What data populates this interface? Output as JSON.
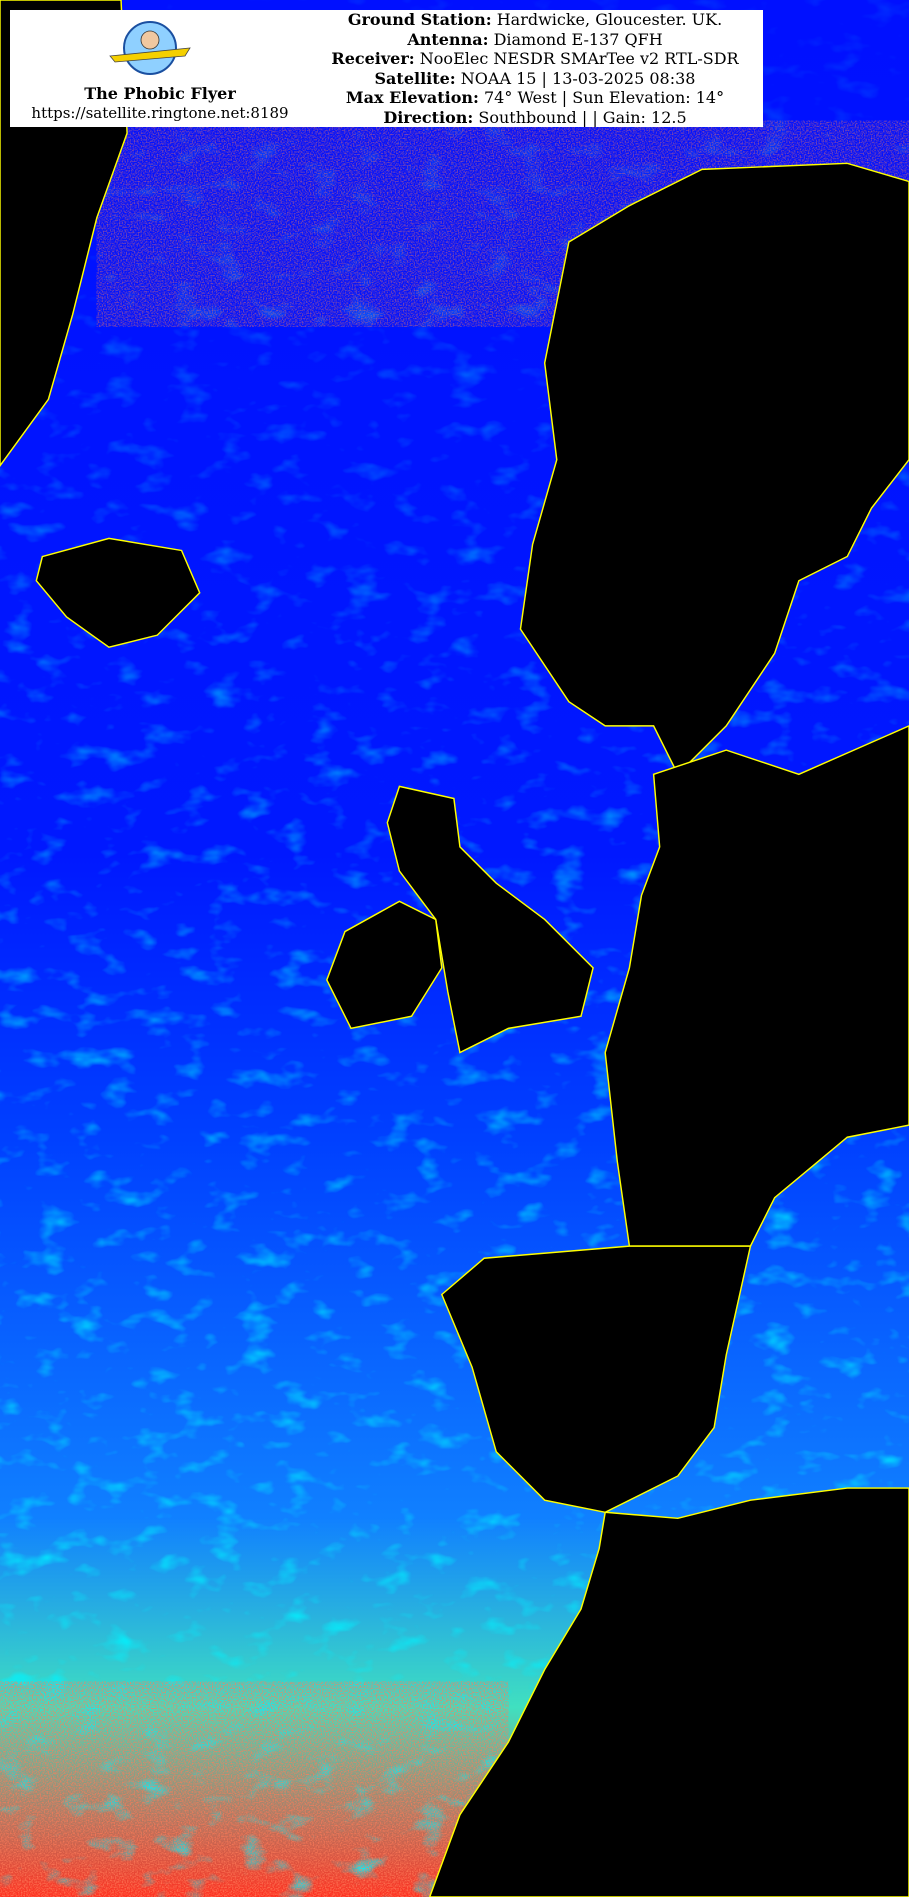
{
  "header": {
    "brand_name": "The Phobic Flyer",
    "brand_url": "https://satellite.ringtone.net:8189",
    "logo_text": "The Phobic Flyer",
    "lines": [
      {
        "label": "Ground Station:",
        "value": "Hardwicke, Gloucester. UK."
      },
      {
        "label": "Antenna:",
        "value": "Diamond E-137 QFH"
      },
      {
        "label": "Receiver:",
        "value": "NooElec NESDR SMArTee v2 RTL-SDR"
      },
      {
        "label": "Satellite:",
        "value": "NOAA 15 | 13-03-2025 08:38"
      },
      {
        "label": "Max Elevation:",
        "value": "74° West | Sun Elevation: 14°"
      },
      {
        "label": "Direction:",
        "value": "Southbound | | Gain: 12.5"
      }
    ]
  },
  "image": {
    "colors": {
      "ocean": "#0000ff",
      "land": "#000000",
      "borders": "#ffff00",
      "cloud_low": "#00e5ff",
      "cloud_high": "#aaff66",
      "noise": "#ff2020"
    }
  }
}
